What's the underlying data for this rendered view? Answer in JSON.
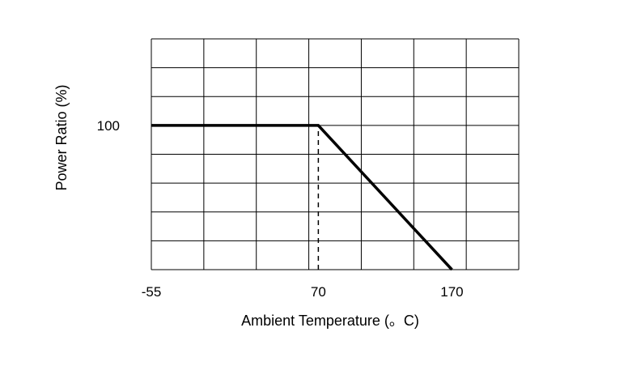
{
  "chart_data": {
    "type": "line",
    "title": "",
    "xlabel": "Ambient Temperature (。C)",
    "ylabel": "Power Ratio (%)",
    "x_tick_labels": [
      "-55",
      "70",
      "170"
    ],
    "y_tick_labels": [
      "100"
    ],
    "xlim": [
      -55,
      220
    ],
    "ylim": [
      0,
      160
    ],
    "grid": true,
    "series": [
      {
        "x": [
          -55,
          70,
          170
        ],
        "y": [
          100,
          100,
          0
        ],
        "color": "#000000"
      }
    ],
    "annotations": [
      {
        "type": "vertical-dashed-line",
        "x": 70,
        "y_from": 0,
        "y_to": 100
      }
    ]
  }
}
